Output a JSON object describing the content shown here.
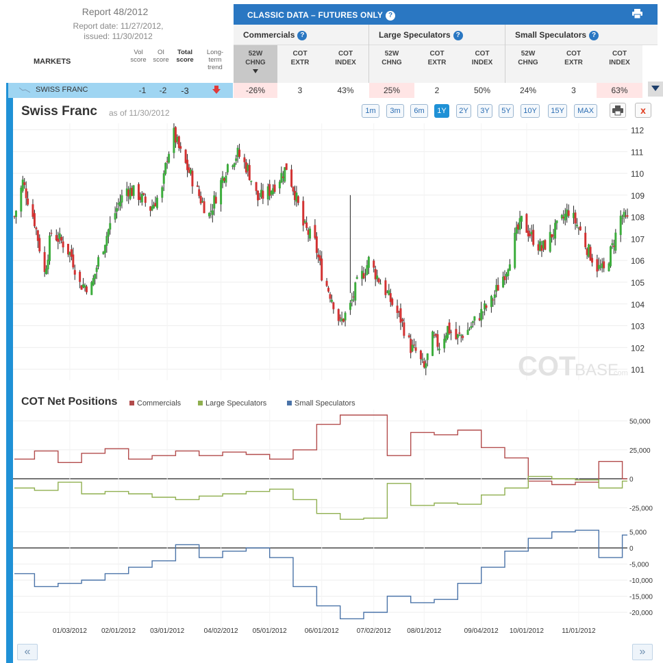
{
  "report": {
    "title": "Report 48/2012",
    "date_line": "Report date: 11/27/2012,",
    "issued_line": "issued: 11/30/2012"
  },
  "markets_header": "MARKETS",
  "score_cols": {
    "vol": [
      "Vol",
      "score"
    ],
    "oi": [
      "OI",
      "score"
    ],
    "total": [
      "Total",
      "score"
    ],
    "trend": [
      "Long-",
      "term",
      "trend"
    ]
  },
  "classic": {
    "title": "CLASSIC DATA – FUTURES ONLY",
    "help": "?"
  },
  "groups": [
    {
      "name": "Commercials",
      "cols": [
        [
          "52W",
          "CHNG"
        ],
        [
          "COT",
          "EXTR"
        ],
        [
          "COT",
          "INDEX"
        ]
      ]
    },
    {
      "name": "Large Speculators",
      "cols": [
        [
          "52W",
          "CHNG"
        ],
        [
          "COT",
          "EXTR"
        ],
        [
          "COT",
          "INDEX"
        ]
      ]
    },
    {
      "name": "Small Speculators",
      "cols": [
        [
          "52W",
          "CHNG"
        ],
        [
          "COT",
          "EXTR"
        ],
        [
          "COT",
          "INDEX"
        ]
      ]
    }
  ],
  "row": {
    "market": "SWISS FRANC",
    "vol": "-1",
    "oi": "-2",
    "total": "-3",
    "trend": "down",
    "com_chng": "-26%",
    "com_extr": "3",
    "com_index": "43%",
    "ls_chng": "25%",
    "ls_extr": "2",
    "ls_index": "50%",
    "ss_chng": "24%",
    "ss_extr": "3",
    "ss_index": "63%"
  },
  "chart": {
    "title": "Swiss Franc",
    "as_of": "as of 11/30/2012",
    "ranges": [
      "1m",
      "3m",
      "6m",
      "1Y",
      "2Y",
      "3Y",
      "5Y",
      "10Y",
      "15Y",
      "MAX"
    ],
    "active_range": "1Y",
    "close_label": "x",
    "watermark_a": "COT",
    "watermark_b": "BASE",
    "watermark_c": ".com"
  },
  "cot": {
    "title": "COT Net Positions",
    "legend": [
      "Commercials",
      "Large Speculators",
      "Small Speculators"
    ]
  },
  "nav": {
    "prev": "«",
    "next": "»"
  },
  "colors": {
    "accent": "#2a77c2",
    "selected_row": "#9fd5f2",
    "up_candle": "#3cad3c",
    "down_candle": "#d23232",
    "commercials": "#b24b4b",
    "large_spec": "#8faf4f",
    "small_spec": "#4a73a8"
  },
  "chart_data": [
    {
      "type": "candlestick",
      "title": "Swiss Franc",
      "y_ticks": [
        112,
        111,
        110,
        109,
        108,
        107,
        106,
        105,
        104,
        103,
        102,
        101
      ],
      "ylim": [
        100.5,
        112.3
      ],
      "x_ticks": [
        "01/03/2012",
        "02/01/2012",
        "03/01/2012",
        "04/02/2012",
        "05/01/2012",
        "06/01/2012",
        "07/02/2012",
        "08/01/2012",
        "09/04/2012",
        "10/01/2012",
        "11/01/2012"
      ],
      "close_path": [
        [
          "2011-12-01",
          108.0
        ],
        [
          "2011-12-06",
          109.6
        ],
        [
          "2011-12-13",
          107.8
        ],
        [
          "2011-12-19",
          105.4
        ],
        [
          "2011-12-23",
          107.3
        ],
        [
          "2011-12-30",
          106.8
        ],
        [
          "2012-01-04",
          106.2
        ],
        [
          "2012-01-09",
          104.9
        ],
        [
          "2012-01-16",
          104.8
        ],
        [
          "2012-01-20",
          106.0
        ],
        [
          "2012-01-26",
          107.4
        ],
        [
          "2012-02-01",
          108.6
        ],
        [
          "2012-02-06",
          109.3
        ],
        [
          "2012-02-13",
          109.0
        ],
        [
          "2012-02-20",
          108.4
        ],
        [
          "2012-02-27",
          109.2
        ],
        [
          "2012-03-01",
          110.8
        ],
        [
          "2012-03-05",
          111.8
        ],
        [
          "2012-03-09",
          110.9
        ],
        [
          "2012-03-15",
          109.9
        ],
        [
          "2012-03-21",
          108.8
        ],
        [
          "2012-03-26",
          108.1
        ],
        [
          "2012-04-02",
          109.6
        ],
        [
          "2012-04-06",
          110.4
        ],
        [
          "2012-04-12",
          110.9
        ],
        [
          "2012-04-18",
          110.2
        ],
        [
          "2012-04-24",
          108.8
        ],
        [
          "2012-05-01",
          109.2
        ],
        [
          "2012-05-07",
          109.8
        ],
        [
          "2012-05-11",
          110.3
        ],
        [
          "2012-05-16",
          109.1
        ],
        [
          "2012-05-21",
          107.6
        ],
        [
          "2012-05-28",
          106.8
        ],
        [
          "2012-06-01",
          105.4
        ],
        [
          "2012-06-07",
          104.3
        ],
        [
          "2012-06-12",
          103.1
        ],
        [
          "2012-06-18",
          103.9
        ],
        [
          "2012-06-22",
          104.9
        ],
        [
          "2012-06-27",
          105.6
        ],
        [
          "2012-06-29",
          106.0
        ],
        [
          "2012-07-03",
          105.4
        ],
        [
          "2012-07-09",
          104.6
        ],
        [
          "2012-07-13",
          104.0
        ],
        [
          "2012-07-18",
          103.3
        ],
        [
          "2012-07-24",
          102.0
        ],
        [
          "2012-07-27",
          101.8
        ],
        [
          "2012-08-01",
          101.0
        ],
        [
          "2012-08-06",
          102.4
        ],
        [
          "2012-08-10",
          102.1
        ],
        [
          "2012-08-15",
          102.9
        ],
        [
          "2012-08-20",
          102.4
        ],
        [
          "2012-08-27",
          102.8
        ],
        [
          "2012-09-04",
          103.6
        ],
        [
          "2012-09-10",
          104.1
        ],
        [
          "2012-09-14",
          104.8
        ],
        [
          "2012-09-19",
          105.6
        ],
        [
          "2012-09-24",
          107.0
        ],
        [
          "2012-09-28",
          107.8
        ],
        [
          "2012-10-04",
          107.1
        ],
        [
          "2012-10-10",
          106.5
        ],
        [
          "2012-10-16",
          107.2
        ],
        [
          "2012-10-22",
          107.8
        ],
        [
          "2012-10-26",
          108.3
        ],
        [
          "2012-11-01",
          107.5
        ],
        [
          "2012-11-07",
          106.4
        ],
        [
          "2012-11-12",
          105.7
        ],
        [
          "2012-11-16",
          105.5
        ],
        [
          "2012-11-21",
          106.6
        ],
        [
          "2012-11-26",
          108.0
        ],
        [
          "2012-11-30",
          107.8
        ]
      ]
    },
    {
      "type": "line",
      "title": "COT Net Positions",
      "x_ticks": [
        "01/03/2012",
        "02/01/2012",
        "03/01/2012",
        "04/02/2012",
        "05/01/2012",
        "06/01/2012",
        "07/02/2012",
        "08/01/2012",
        "09/04/2012",
        "10/01/2012",
        "11/01/2012"
      ],
      "y_ticks_top": [
        50000,
        25000,
        0,
        -25000
      ],
      "y_ticks_bottom": [
        5000,
        0,
        -5000,
        -10000,
        -15000,
        -20000
      ],
      "x": [
        "2011-12-01",
        "2011-12-13",
        "2011-12-27",
        "2012-01-10",
        "2012-01-24",
        "2012-02-07",
        "2012-02-21",
        "2012-03-06",
        "2012-03-20",
        "2012-04-03",
        "2012-04-17",
        "2012-05-01",
        "2012-05-15",
        "2012-05-29",
        "2012-06-12",
        "2012-06-26",
        "2012-07-10",
        "2012-07-24",
        "2012-08-07",
        "2012-08-21",
        "2012-09-04",
        "2012-09-18",
        "2012-10-02",
        "2012-10-16",
        "2012-10-30",
        "2012-11-13",
        "2012-11-27"
      ],
      "series": [
        {
          "name": "Commercials",
          "values": [
            17000,
            24000,
            14000,
            22000,
            26000,
            17000,
            20000,
            24000,
            20000,
            23000,
            21000,
            17000,
            25000,
            47000,
            55000,
            55000,
            20000,
            40000,
            38000,
            42000,
            27000,
            18000,
            -2000,
            -5000,
            -3000,
            15000,
            0
          ]
        },
        {
          "name": "Large Speculators",
          "values": [
            -8000,
            -10000,
            -3000,
            -13000,
            -11000,
            -13000,
            -16000,
            -18000,
            -15000,
            -13000,
            -11000,
            -9000,
            -18000,
            -30000,
            -35000,
            -34000,
            -4000,
            -23000,
            -21000,
            -22000,
            -14000,
            -8000,
            2000,
            0,
            -1000,
            -8000,
            -2000
          ]
        },
        {
          "name": "Small Speculators",
          "values": [
            -8000,
            -12000,
            -11000,
            -10000,
            -8000,
            -6000,
            -4000,
            1000,
            -3000,
            -1000,
            0,
            -3000,
            -12000,
            -18000,
            -22000,
            -20000,
            -15000,
            -17000,
            -16000,
            -11000,
            -6000,
            -1000,
            3000,
            5000,
            5500,
            -3000,
            4000
          ]
        }
      ]
    }
  ]
}
